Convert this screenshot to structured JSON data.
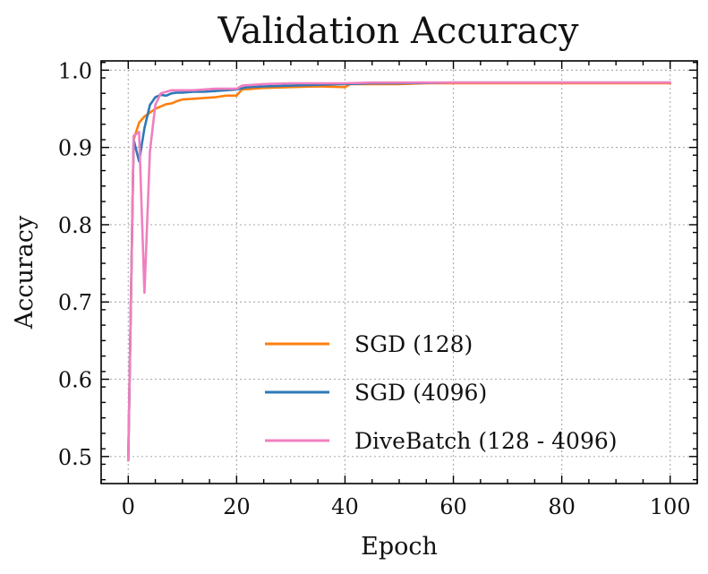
{
  "chart_data": {
    "type": "line",
    "title": "Validation Accuracy",
    "xlabel": "Epoch",
    "ylabel": "Accuracy",
    "xlim": [
      -5,
      105
    ],
    "ylim": [
      0.465,
      1.012
    ],
    "xticks": [
      0,
      20,
      40,
      60,
      80,
      100
    ],
    "xtick_labels": [
      "0",
      "20",
      "40",
      "60",
      "80",
      "100"
    ],
    "yticks": [
      0.5,
      0.6,
      0.7,
      0.8,
      0.9,
      1.0
    ],
    "ytick_labels": [
      "0.5",
      "0.6",
      "0.7",
      "0.8",
      "0.9",
      "1.0"
    ],
    "grid": true,
    "legend_position": "lower-right",
    "series": [
      {
        "name": "SGD (128)",
        "color": "#ff7f0e",
        "x": [
          0,
          1,
          2,
          3,
          4,
          5,
          6,
          7,
          8,
          9,
          10,
          12,
          14,
          16,
          18,
          20,
          21,
          25,
          30,
          35,
          40,
          41,
          45,
          50,
          55,
          60,
          70,
          80,
          90,
          100
        ],
        "y": [
          0.495,
          0.91,
          0.932,
          0.94,
          0.945,
          0.95,
          0.953,
          0.956,
          0.957,
          0.96,
          0.962,
          0.963,
          0.964,
          0.965,
          0.967,
          0.967,
          0.975,
          0.977,
          0.978,
          0.979,
          0.978,
          0.982,
          0.982,
          0.982,
          0.983,
          0.983,
          0.983,
          0.983,
          0.983,
          0.983
        ]
      },
      {
        "name": "SGD (4096)",
        "color": "#2f78b7",
        "x": [
          0,
          1,
          2,
          3,
          4,
          5,
          6,
          7,
          8,
          9,
          10,
          12,
          14,
          16,
          18,
          20,
          22,
          25,
          30,
          35,
          40,
          45,
          50,
          60,
          70,
          80,
          90,
          100
        ],
        "y": [
          0.495,
          0.91,
          0.882,
          0.925,
          0.955,
          0.965,
          0.968,
          0.967,
          0.97,
          0.971,
          0.971,
          0.972,
          0.972,
          0.973,
          0.974,
          0.975,
          0.978,
          0.979,
          0.98,
          0.981,
          0.982,
          0.983,
          0.983,
          0.984,
          0.984,
          0.984,
          0.984,
          0.984
        ]
      },
      {
        "name": "DiveBatch (128 - 4096)",
        "color": "#f07fc0",
        "x": [
          0,
          1,
          2,
          3,
          4,
          5,
          6,
          7,
          8,
          10,
          12,
          14,
          16,
          18,
          20,
          21,
          25,
          30,
          35,
          40,
          45,
          50,
          60,
          70,
          80,
          90,
          100
        ],
        "y": [
          0.495,
          0.915,
          0.92,
          0.712,
          0.895,
          0.955,
          0.97,
          0.972,
          0.974,
          0.974,
          0.974,
          0.975,
          0.976,
          0.976,
          0.976,
          0.98,
          0.982,
          0.983,
          0.983,
          0.983,
          0.984,
          0.984,
          0.984,
          0.984,
          0.984,
          0.984,
          0.984
        ]
      }
    ]
  }
}
